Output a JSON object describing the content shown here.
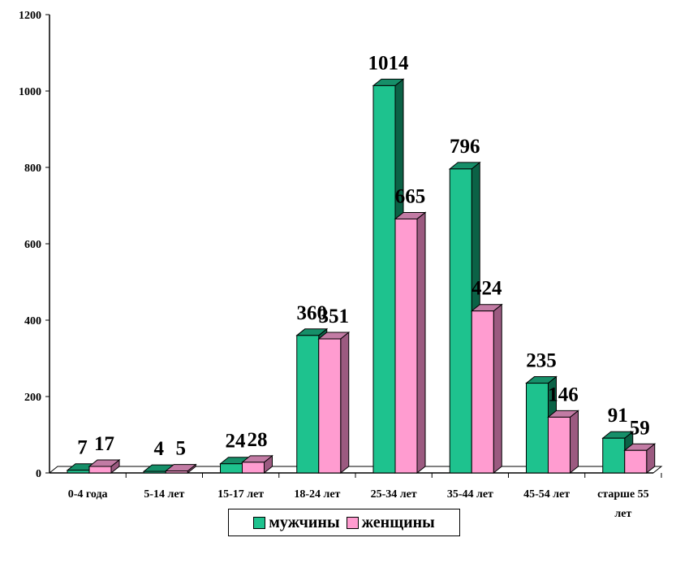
{
  "chart_data": {
    "type": "bar",
    "categories": [
      "0-4 года",
      "5-14 лет",
      "15-17 лет",
      "18-24 лет",
      "25-34 лет",
      "35-44 лет",
      "45-54 лет",
      "старше 55 лет"
    ],
    "series": [
      {
        "name": "мужчины",
        "values": [
          7,
          4,
          24,
          360,
          1014,
          796,
          235,
          91
        ]
      },
      {
        "name": "женщины",
        "values": [
          17,
          5,
          28,
          351,
          665,
          424,
          146,
          59
        ]
      }
    ],
    "yticks": [
      "0",
      "200",
      "400",
      "600",
      "800",
      "1000",
      "1200"
    ],
    "ylim": [
      0,
      1200
    ],
    "grid": false,
    "legend": "bottom",
    "colors": {
      "мужчины": {
        "front": "#1ec28e",
        "top": "#168f69",
        "side": "#0b6246"
      },
      "женщины": {
        "front": "#ff9cd0",
        "top": "#c27ba4",
        "side": "#9b5a80"
      }
    }
  }
}
